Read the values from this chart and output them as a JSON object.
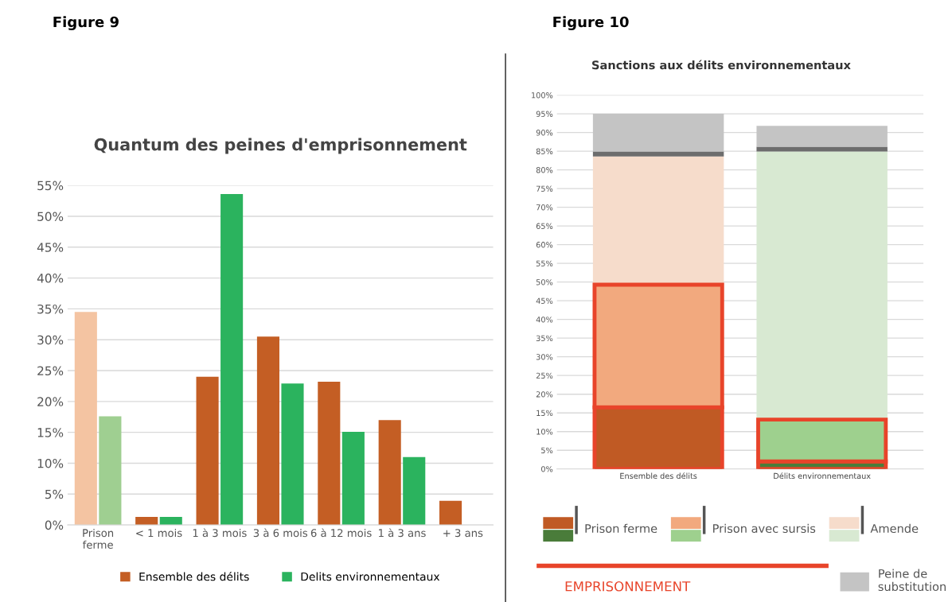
{
  "chart_data": [
    {
      "type": "bar",
      "title": "Quantum des peines d'emprisonnement",
      "annotations": [
        "Figure 9"
      ],
      "categories": [
        "Prison\nferme",
        "< 1 mois",
        "1 à 3 mois",
        "3 à 6 mois",
        "6 à 12 mois",
        "1 à 3 ans",
        "+ 3 ans"
      ],
      "series": [
        {
          "name": "Ensemble des délits",
          "color": "#c45e24",
          "colors": [
            "#f4c4a2",
            "#c45e24",
            "#c45e24",
            "#c45e24",
            "#c45e24",
            "#c45e24",
            "#c45e24"
          ],
          "values": [
            34.5,
            1.3,
            24,
            30.5,
            23.2,
            17,
            3.9
          ]
        },
        {
          "name": "Delits environnementaux",
          "color": "#2bb35e",
          "colors": [
            "#9fcf91",
            "#2bb35e",
            "#2bb35e",
            "#2bb35e",
            "#2bb35e",
            "#2bb35e",
            null
          ],
          "values": [
            17.6,
            1.3,
            53.6,
            22.9,
            15.1,
            11,
            null
          ]
        }
      ],
      "ylim": [
        0,
        55
      ],
      "yticks": [
        {
          "value": 0,
          "label": "0%"
        },
        {
          "value": 5,
          "label": "5%"
        },
        {
          "value": 10,
          "label": "10%"
        },
        {
          "value": 15,
          "label": "15%"
        },
        {
          "value": 20,
          "label": "20%"
        },
        {
          "value": 25,
          "label": "25%"
        },
        {
          "value": 30,
          "label": "30%"
        },
        {
          "value": 35,
          "label": "35%"
        },
        {
          "value": 40,
          "label": "40%"
        },
        {
          "value": 45,
          "label": "45%"
        },
        {
          "value": 50,
          "label": "50%"
        },
        {
          "value": 55,
          "label": "55%"
        }
      ],
      "grid": "y",
      "legend": "bottom"
    },
    {
      "type": "bar",
      "stacked": true,
      "title": "Sanctions aux délits environnementaux",
      "annotations": [
        "Figure 10",
        "EMPRISONNEMENT"
      ],
      "categories": [
        "Ensemble des délits",
        "Délits environnementaux"
      ],
      "series": [
        {
          "name": "Prison ferme",
          "colors": [
            "#c05a24",
            "#4a7c3a"
          ],
          "values": [
            16.5,
            2
          ]
        },
        {
          "name": "Prison avec sursis",
          "colors": [
            "#f2a97e",
            "#9ed08e"
          ],
          "values": [
            32.8,
            11.2
          ]
        },
        {
          "name": "Amende",
          "colors": [
            "#f6dccb",
            "#d8e9d2"
          ],
          "values": [
            34.3,
            71.7
          ]
        },
        {
          "colors": [
            "#6d6d6d",
            "#6d6d6d"
          ],
          "values": [
            1.3,
            1.3
          ]
        },
        {
          "name": "Peine de\nsubstitution",
          "colors": [
            "#c4c4c4",
            "#c4c4c4"
          ],
          "values": [
            10.1,
            5.6
          ]
        }
      ],
      "ylim": [
        0,
        100
      ],
      "yticks": [
        {
          "value": 0,
          "label": "0%"
        },
        {
          "value": 5,
          "label": "5%"
        },
        {
          "value": 10,
          "label": "10%"
        },
        {
          "value": 15,
          "label": "15%"
        },
        {
          "value": 20,
          "label": "20%"
        },
        {
          "value": 25,
          "label": "25%"
        },
        {
          "value": 30,
          "label": "30%"
        },
        {
          "value": 35,
          "label": "35%"
        },
        {
          "value": 40,
          "label": "40%"
        },
        {
          "value": 45,
          "label": "45%"
        },
        {
          "value": 50,
          "label": "50%"
        },
        {
          "value": 55,
          "label": "55%"
        },
        {
          "value": 60,
          "label": "60%"
        },
        {
          "value": 65,
          "label": "65%"
        },
        {
          "value": 70,
          "label": "70%"
        },
        {
          "value": 75,
          "label": "75%"
        },
        {
          "value": 80,
          "label": "80%"
        },
        {
          "value": 85,
          "label": "85%"
        },
        {
          "value": 90,
          "label": "90%"
        },
        {
          "value": 95,
          "label": "95%"
        },
        {
          "value": 100,
          "label": "100%"
        }
      ],
      "grid": "y",
      "legend": "bottom"
    }
  ]
}
